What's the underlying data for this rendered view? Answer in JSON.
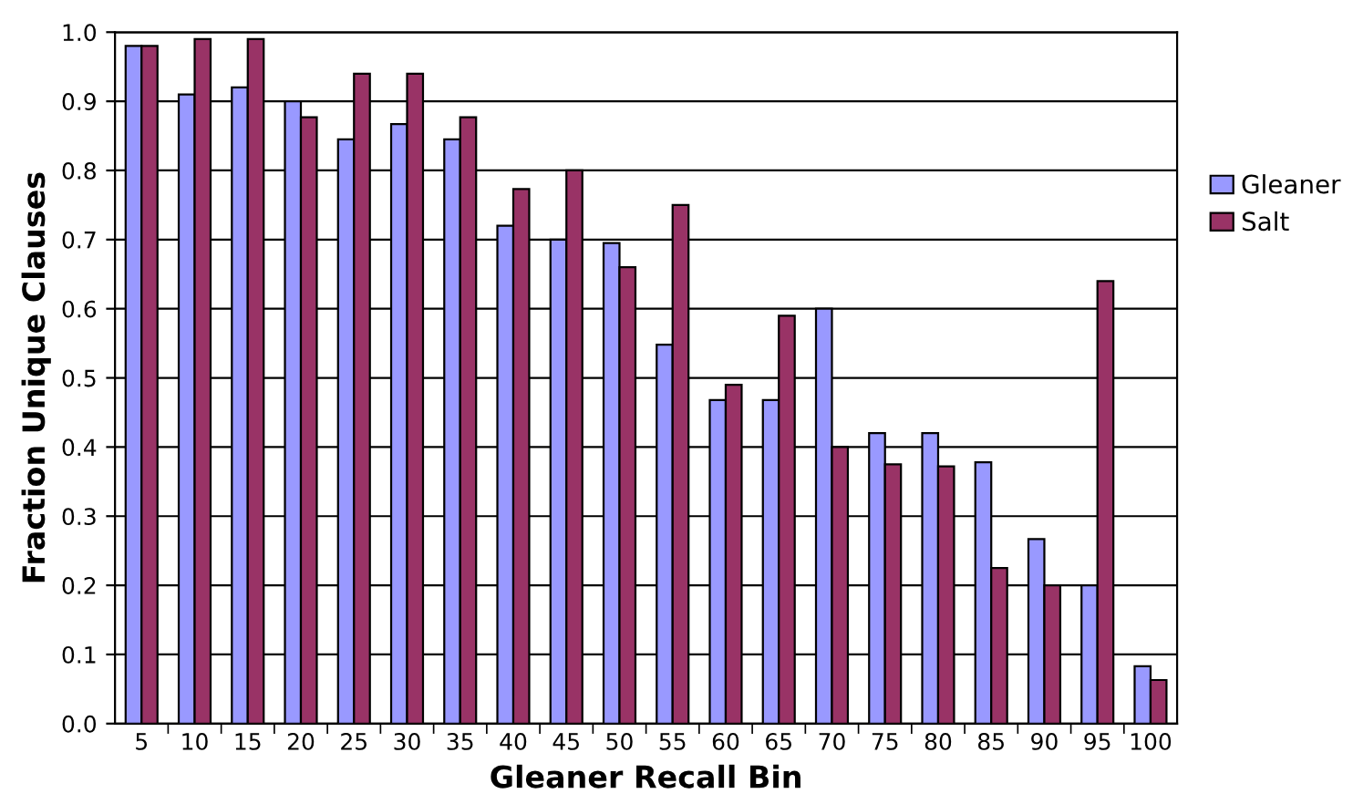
{
  "chart_data": {
    "type": "bar",
    "xlabel": "Gleaner Recall Bin",
    "ylabel": "Fraction Unique Clauses",
    "categories": [
      "5",
      "10",
      "15",
      "20",
      "25",
      "30",
      "35",
      "40",
      "45",
      "50",
      "55",
      "60",
      "65",
      "70",
      "75",
      "80",
      "85",
      "90",
      "95",
      "100"
    ],
    "series": [
      {
        "name": "Gleaner",
        "color": "#9999ff",
        "values": [
          0.98,
          0.91,
          0.92,
          0.9,
          0.845,
          0.867,
          0.845,
          0.72,
          0.7,
          0.695,
          0.548,
          0.468,
          0.468,
          0.6,
          0.42,
          0.42,
          0.378,
          0.267,
          0.2,
          0.083
        ]
      },
      {
        "name": "Salt",
        "color": "#993366",
        "values": [
          0.98,
          0.99,
          0.99,
          0.877,
          0.94,
          0.94,
          0.877,
          0.773,
          0.8,
          0.66,
          0.75,
          0.49,
          0.59,
          0.4,
          0.375,
          0.372,
          0.225,
          0.2,
          0.64,
          0.063
        ]
      }
    ],
    "ylim": [
      0,
      1
    ],
    "yticks": [
      {
        "value": 0,
        "label": "0.0"
      },
      {
        "value": 0.1,
        "label": "0.1"
      },
      {
        "value": 0.2,
        "label": "0.2"
      },
      {
        "value": 0.3,
        "label": "0.3"
      },
      {
        "value": 0.4,
        "label": "0.4"
      },
      {
        "value": 0.5,
        "label": "0.5"
      },
      {
        "value": 0.6,
        "label": "0.6"
      },
      {
        "value": 0.7,
        "label": "0.7"
      },
      {
        "value": 0.8,
        "label": "0.8"
      },
      {
        "value": 0.9,
        "label": "0.9"
      },
      {
        "value": 1,
        "label": "1.0"
      }
    ],
    "grid": "y",
    "legend": "right"
  }
}
